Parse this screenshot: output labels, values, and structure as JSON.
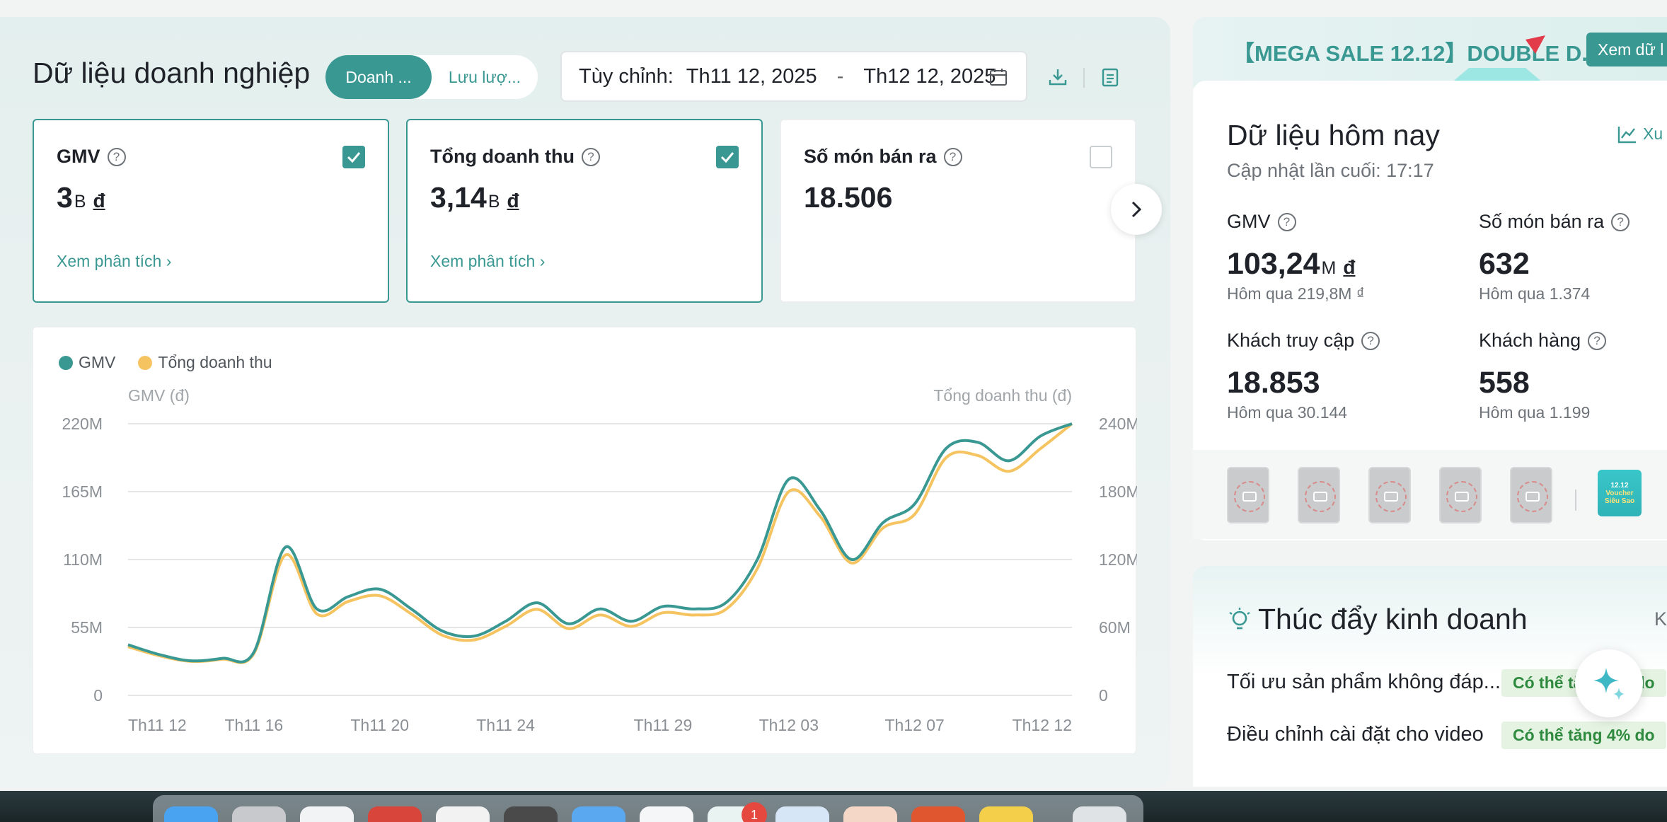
{
  "header": {
    "title": "Dữ liệu doanh nghiệp",
    "tabs": [
      {
        "label": "Doanh ...",
        "active": true
      },
      {
        "label": "Lưu lượ...",
        "active": false
      }
    ],
    "date_range": {
      "label": "Tùy chỉnh:",
      "start": "Th11 12, 2025",
      "separator": "-",
      "end": "Th12 12, 2025"
    }
  },
  "metric_cards": [
    {
      "title": "GMV",
      "value": "3",
      "unit": "B",
      "currency": "đ",
      "checked": true,
      "link": "Xem phân tích ›"
    },
    {
      "title": "Tổng doanh thu",
      "value": "3,14",
      "unit": "B",
      "currency": "đ",
      "checked": true,
      "link": "Xem phân tích ›"
    },
    {
      "title": "Số món bán ra",
      "value": "18.506",
      "unit": "",
      "currency": "",
      "checked": false,
      "link": ""
    }
  ],
  "chart_data": {
    "type": "line",
    "legend": [
      "GMV",
      "Tổng doanh thu"
    ],
    "left_axis_label": "GMV (đ)",
    "right_axis_label": "Tổng doanh thu (đ)",
    "left_ticks": [
      "0",
      "55M",
      "110M",
      "165M",
      "220M"
    ],
    "right_ticks": [
      "0",
      "60M",
      "120M",
      "180M",
      "240M"
    ],
    "ylim_left": [
      0,
      220
    ],
    "ylim_right": [
      0,
      240
    ],
    "x_ticks": [
      "Th11 12",
      "Th11 16",
      "Th11 20",
      "Th11 24",
      "Th11 29",
      "Th12 03",
      "Th12 07",
      "Th12 12"
    ],
    "x": [
      "Th11 12",
      "Th11 13",
      "Th11 14",
      "Th11 15",
      "Th11 16",
      "Th11 17",
      "Th11 18",
      "Th11 19",
      "Th11 20",
      "Th11 21",
      "Th11 22",
      "Th11 23",
      "Th11 24",
      "Th11 25",
      "Th11 26",
      "Th11 27",
      "Th11 28",
      "Th11 29",
      "Th11 30",
      "Th12 01",
      "Th12 02",
      "Th12 03",
      "Th12 04",
      "Th12 05",
      "Th12 06",
      "Th12 07",
      "Th12 08",
      "Th12 09",
      "Th12 10",
      "Th12 11",
      "Th12 12"
    ],
    "series": [
      {
        "name": "GMV",
        "color": "#3a9893",
        "values": [
          41,
          33,
          28,
          30,
          35,
          120,
          70,
          80,
          86,
          70,
          52,
          48,
          60,
          75,
          58,
          70,
          60,
          72,
          70,
          75,
          110,
          175,
          150,
          110,
          140,
          155,
          200,
          205,
          190,
          210,
          220
        ]
      },
      {
        "name": "Tổng doanh thu",
        "color": "#f5c460",
        "values": [
          43,
          35,
          30,
          32,
          37,
          124,
          72,
          83,
          88,
          72,
          53,
          49,
          61,
          76,
          59,
          71,
          61,
          73,
          71,
          76,
          112,
          180,
          158,
          117,
          148,
          160,
          210,
          212,
          198,
          218,
          240
        ]
      }
    ]
  },
  "right_panel": {
    "banner": {
      "text": "【MEGA SALE 12.12】DOUBLE D...",
      "button": "Xem dữ l"
    },
    "today": {
      "title": "Dữ liệu hôm nay",
      "updated": "Cập nhật lần cuối: 17:17",
      "trend_link": "Xu",
      "stats": [
        {
          "label": "GMV",
          "value": "103,24",
          "unit": "M",
          "currency": "đ",
          "prev": "Hôm qua 219,8M ₫"
        },
        {
          "label": "Số món bán ra",
          "value": "632",
          "unit": "",
          "currency": "",
          "prev": "Hôm qua 1.374"
        },
        {
          "label": "Khách truy cập",
          "value": "18.853",
          "unit": "",
          "currency": "",
          "prev": "Hôm qua 30.144"
        },
        {
          "label": "Khách hàng",
          "value": "558",
          "unit": "",
          "currency": "",
          "prev": "Hôm qua 1.199"
        }
      ]
    },
    "voucher": {
      "line1": "12.12",
      "line2": "Voucher",
      "line3": "Siêu Sao"
    },
    "boost": {
      "title": "Thúc đẩy kinh doanh",
      "title_suffix": "K",
      "rows": [
        {
          "text": "Tối ưu sản phẩm không đáp...",
          "badge": "Có thể tăng 5% do"
        },
        {
          "text": "Điều chỉnh cài đặt cho video",
          "badge": "Có thể tăng 4% do"
        }
      ]
    }
  },
  "dock": {
    "badge": "1"
  },
  "colors": {
    "accent": "#3a9893",
    "secondary": "#f5c460"
  }
}
